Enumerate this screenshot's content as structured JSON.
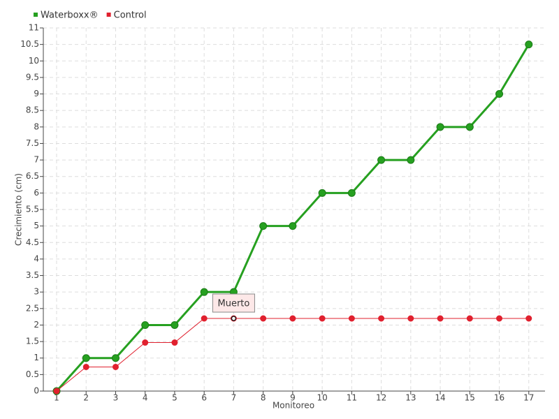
{
  "chart_data": {
    "type": "line",
    "x_label": "Monitoreo",
    "y_label": "Crecimiento (cm)",
    "categories": [
      "1",
      "2",
      "3",
      "4",
      "5",
      "6",
      "7",
      "8",
      "9",
      "10",
      "11",
      "12",
      "13",
      "14",
      "15",
      "16",
      "17"
    ],
    "series": [
      {
        "name": "Waterboxx®",
        "color": "#26a020",
        "values": [
          0,
          1,
          1,
          2,
          2,
          3,
          3,
          5,
          5,
          6,
          6,
          7,
          7,
          8,
          8,
          9,
          10.5
        ]
      },
      {
        "name": "Control",
        "color": "#e0202e",
        "values": [
          0,
          0.73,
          0.73,
          1.47,
          1.47,
          2.2,
          2.2,
          2.2,
          2.2,
          2.2,
          2.2,
          2.2,
          2.2,
          2.2,
          2.2,
          2.2,
          2.2
        ]
      }
    ],
    "ylim": [
      0,
      11
    ],
    "yticks": [
      0,
      0.5,
      1,
      1.5,
      2,
      2.5,
      3,
      3.5,
      4,
      4.5,
      5,
      5.5,
      6,
      6.5,
      7,
      7.5,
      8,
      8.5,
      9,
      9.5,
      10,
      10.5,
      11
    ],
    "grid": true,
    "legend": "top-left",
    "annotations": [
      {
        "text": "Muerto",
        "series": "Control",
        "category": "7"
      }
    ]
  }
}
